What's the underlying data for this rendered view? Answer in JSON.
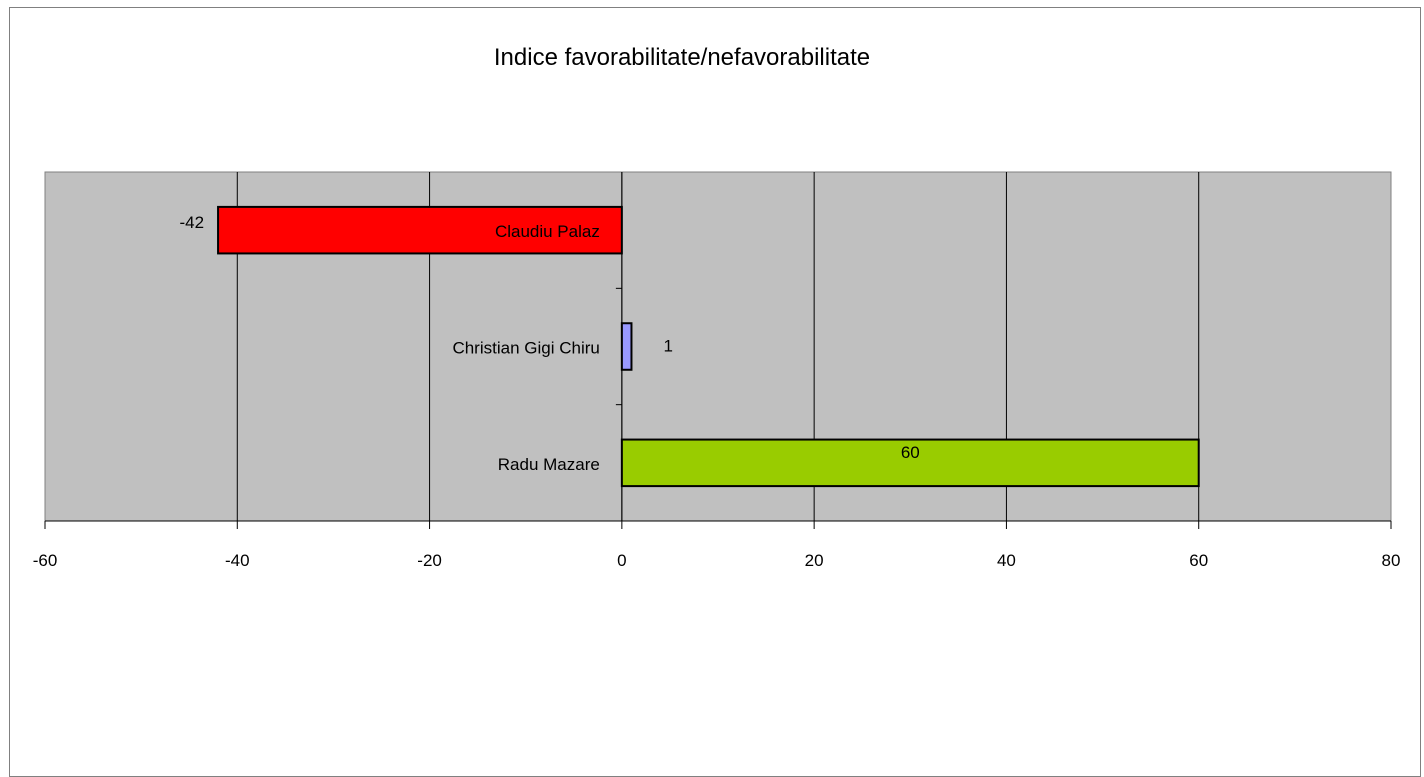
{
  "chart_data": {
    "type": "bar",
    "orientation": "horizontal",
    "title": "Indice favorabilitate/nefavorabilitate",
    "categories": [
      "Claudiu Palaz",
      "Christian Gigi Chiru",
      "Radu Mazare"
    ],
    "values": [
      -42,
      1,
      60
    ],
    "value_labels": [
      "-42",
      "1",
      "60"
    ],
    "bar_colors": [
      "#ff0000",
      "#9999ff",
      "#99cc00"
    ],
    "plot_background": "#c0c0c0",
    "gridlines": true,
    "legend": "none",
    "xlabel": "",
    "ylabel": "",
    "xlim": [
      -60,
      80
    ],
    "x_ticks": [
      -60,
      -40,
      -20,
      0,
      20,
      40,
      60,
      80
    ],
    "x_tick_labels": [
      "-60",
      "-40",
      "-20",
      "0",
      "20",
      "40",
      "60",
      "80"
    ]
  }
}
